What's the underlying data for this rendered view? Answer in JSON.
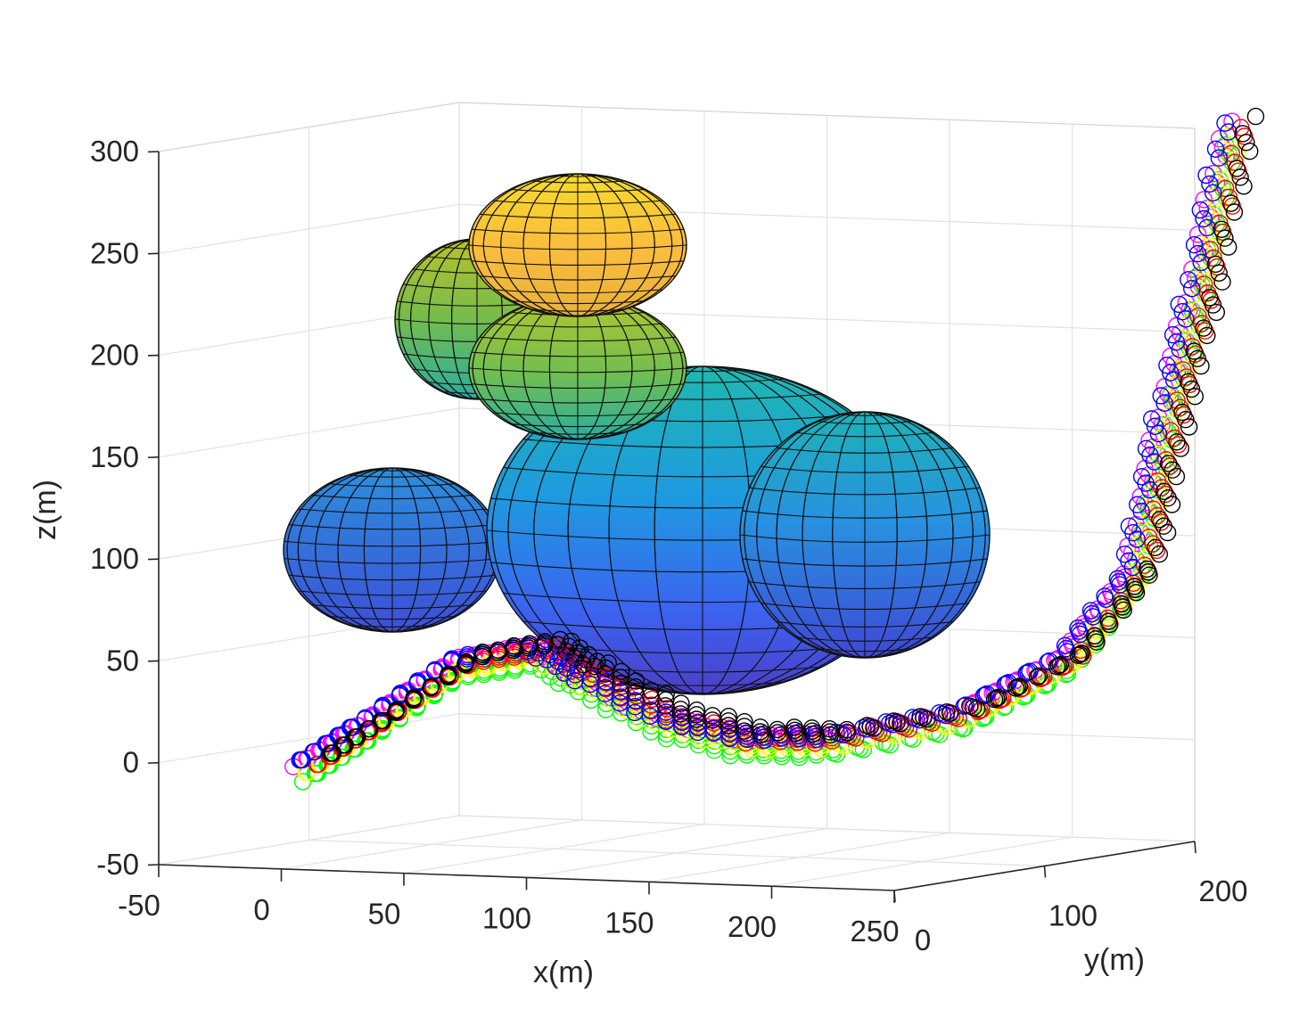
{
  "chart_data": {
    "type": "scatter",
    "subtype": "3d-scatter-with-ellipsoid-surfaces",
    "title": "",
    "xlabel": "x(m)",
    "ylabel": "y(m)",
    "zlabel": "z(m)",
    "xlim": [
      -50,
      250
    ],
    "ylim": [
      0,
      200
    ],
    "zlim": [
      -50,
      300
    ],
    "x_ticks": [
      "-50",
      "0",
      "50",
      "100",
      "150",
      "200",
      "250"
    ],
    "y_ticks": [
      "0",
      "100",
      "200"
    ],
    "z_ticks": [
      "-50",
      "0",
      "50",
      "100",
      "150",
      "200",
      "250",
      "300"
    ],
    "grid": true,
    "colormap": "parula",
    "obstacles": [
      {
        "name": "",
        "center": [
          30,
          80,
          100
        ],
        "radii": [
          45,
          45,
          40
        ],
        "color": "#3a63e2"
      },
      {
        "name": "",
        "center": [
          125,
          90,
          90
        ],
        "radii": [
          85,
          55,
          80
        ],
        "color": "#2e95d4"
      },
      {
        "name": "",
        "center": [
          210,
          115,
          95
        ],
        "radii": [
          70,
          60,
          60
        ],
        "color": "#2a84e0"
      },
      {
        "name": "",
        "center": [
          55,
          140,
          215
        ],
        "radii": [
          40,
          40,
          40
        ],
        "color": "#7ab83a"
      },
      {
        "name": "",
        "center": [
          80,
          100,
          205
        ],
        "radii": [
          45,
          45,
          35
        ],
        "color": "#9cc83a"
      },
      {
        "name": "",
        "center": [
          80,
          100,
          255
        ],
        "radii": [
          45,
          45,
          35
        ],
        "color": "#f0b63a"
      }
    ],
    "trajectory_waypoints": [
      [
        10,
        0,
        0
      ],
      [
        30,
        10,
        20
      ],
      [
        60,
        20,
        50
      ],
      [
        80,
        40,
        55
      ],
      [
        90,
        55,
        40
      ],
      [
        115,
        65,
        20
      ],
      [
        145,
        70,
        10
      ],
      [
        175,
        80,
        10
      ],
      [
        210,
        110,
        20
      ],
      [
        235,
        140,
        45
      ],
      [
        250,
        160,
        85
      ],
      [
        255,
        170,
        150
      ],
      [
        260,
        185,
        220
      ],
      [
        265,
        200,
        300
      ]
    ],
    "series": [
      {
        "name": "",
        "color": "#ff00ff",
        "marker": "circle",
        "offset": [
          -4,
          3,
          2
        ]
      },
      {
        "name": "",
        "color": "#00ff00",
        "marker": "circle",
        "offset": [
          3,
          -4,
          -5
        ]
      },
      {
        "name": "",
        "color": "#ffff00",
        "marker": "circle",
        "offset": [
          0,
          2,
          -2
        ]
      },
      {
        "name": "",
        "color": "#ff0000",
        "marker": "circle",
        "offset": [
          2,
          4,
          1
        ]
      },
      {
        "name": "",
        "color": "#0000ff",
        "marker": "circle",
        "offset": [
          -2,
          -2,
          3
        ]
      },
      {
        "name": "",
        "color": "#000000",
        "marker": "circle",
        "offset": [
          5,
          5,
          5
        ]
      }
    ]
  }
}
